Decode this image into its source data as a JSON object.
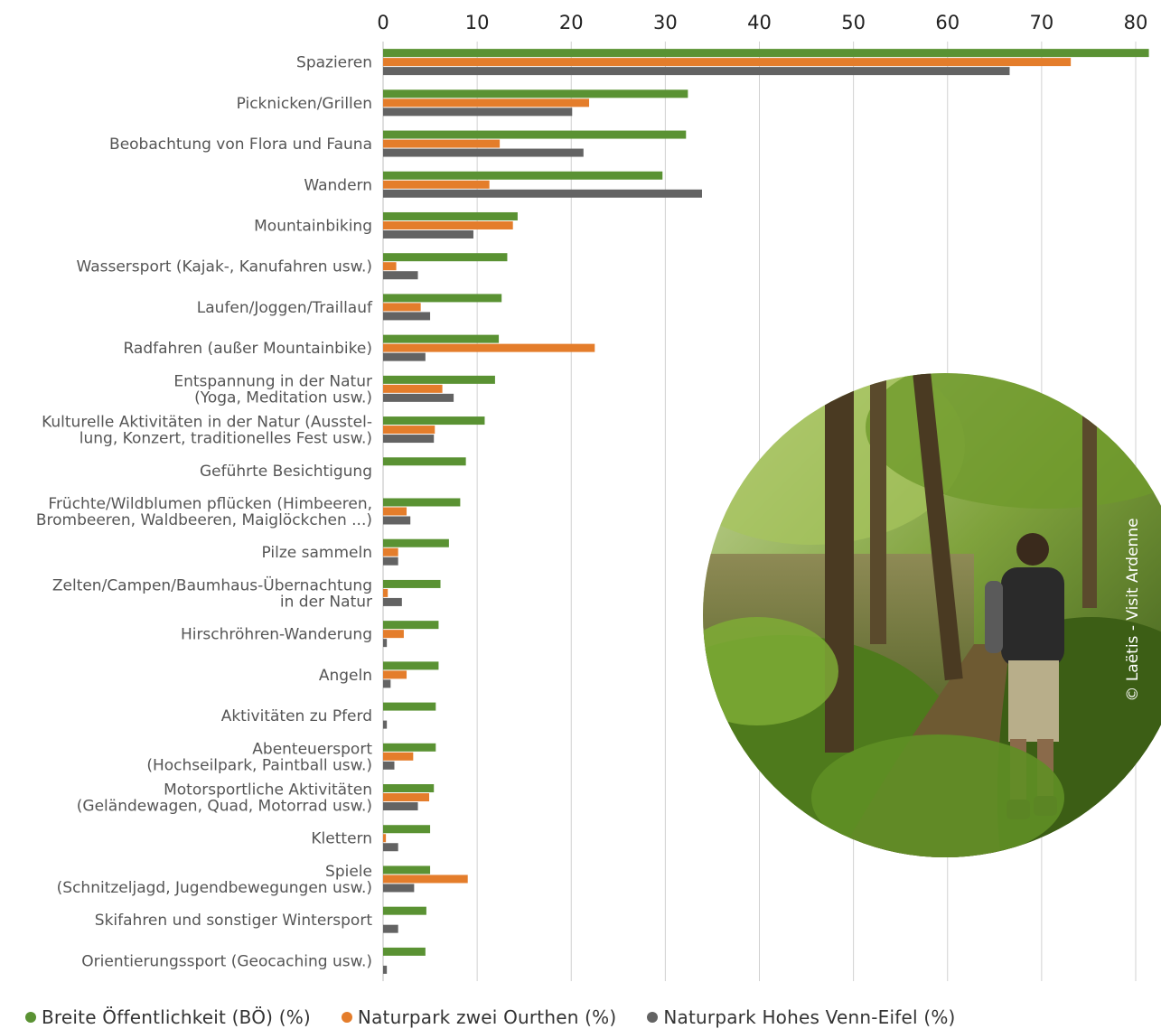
{
  "chart_data": {
    "type": "bar",
    "orientation": "horizontal",
    "xlim": [
      0,
      80
    ],
    "x_ticks": [
      "0",
      "10",
      "20",
      "30",
      "40",
      "50",
      "60",
      "70",
      "80"
    ],
    "grid": true,
    "legend_position": "bottom",
    "categories": [
      [
        "Spazieren"
      ],
      [
        "Picknicken/Grillen"
      ],
      [
        "Beobachtung von Flora und Fauna"
      ],
      [
        "Wandern"
      ],
      [
        "Mountainbiking"
      ],
      [
        "Wassersport (Kajak-, Kanufahren usw.)"
      ],
      [
        "Laufen/Joggen/Traillauf"
      ],
      [
        "Radfahren (außer Mountainbike)"
      ],
      [
        "Entspannung in der Natur",
        "(Yoga, Meditation usw.)"
      ],
      [
        "Kulturelle Aktivitäten in der Natur (Ausstel-",
        "lung, Konzert, traditionelles Fest usw.)"
      ],
      [
        "Geführte Besichtigung"
      ],
      [
        "Früchte/Wildblumen pflücken (Himbeeren,",
        "Brombeeren, Waldbeeren, Maiglöckchen ...)"
      ],
      [
        "Pilze sammeln"
      ],
      [
        "Zelten/Campen/Baumhaus-Übernachtung",
        "in der Natur"
      ],
      [
        "Hirschröhren-Wanderung"
      ],
      [
        "Angeln"
      ],
      [
        "Aktivitäten zu Pferd"
      ],
      [
        "Abenteuersport",
        "(Hochseilpark, Paintball usw.)"
      ],
      [
        "Motorsportliche Aktivitäten",
        "(Geländewagen, Quad, Motorrad usw.)"
      ],
      [
        "Klettern"
      ],
      [
        "Spiele",
        "(Schnitzeljagd, Jugendbewegungen usw.)"
      ],
      [
        "Skifahren und sonstiger Wintersport"
      ],
      [
        "Orientierungssport (Geocaching usw.)"
      ]
    ],
    "series": [
      {
        "name": "Breite Öffentlichkeit (BÖ) (%)",
        "color": "#5a9233",
        "values": [
          81.4,
          32.4,
          32.2,
          29.7,
          14.3,
          13.2,
          12.6,
          12.3,
          11.9,
          10.8,
          8.8,
          8.2,
          7.0,
          6.1,
          5.9,
          5.9,
          5.6,
          5.6,
          5.4,
          5.0,
          5.0,
          4.6,
          4.5
        ]
      },
      {
        "name": "Naturpark zwei Ourthen (%)",
        "color": "#e47d2b",
        "values": [
          73.1,
          21.9,
          12.4,
          11.3,
          13.8,
          1.4,
          4.0,
          22.5,
          6.3,
          5.5,
          0,
          2.5,
          1.6,
          0.5,
          2.2,
          2.5,
          0,
          3.2,
          4.9,
          0.3,
          9.0,
          0,
          0
        ]
      },
      {
        "name": "Naturpark Hohes Venn-Eifel (%)",
        "color": "#636363",
        "values": [
          66.6,
          20.1,
          21.3,
          33.9,
          9.6,
          3.7,
          5.0,
          4.5,
          7.5,
          5.4,
          0,
          2.9,
          1.6,
          2.0,
          0.4,
          0.8,
          0.4,
          1.2,
          3.7,
          1.6,
          3.3,
          1.6,
          0.4
        ]
      }
    ]
  },
  "photo": {
    "credit": "© Laëtis - Visit Ardenne"
  }
}
